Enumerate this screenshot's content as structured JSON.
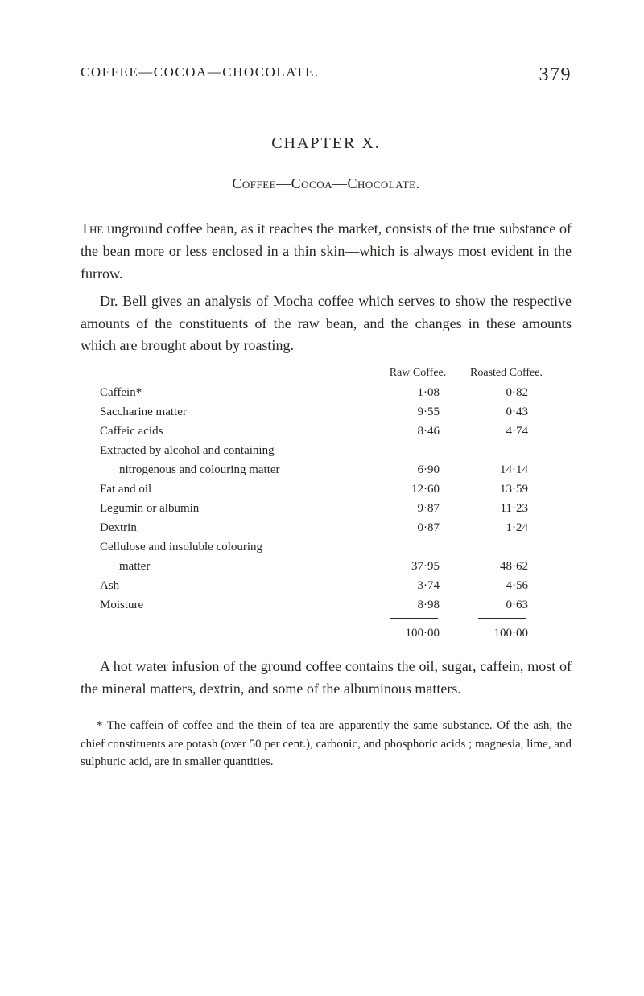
{
  "header": {
    "running_title": "COFFEE—COCOA—CHOCOLATE.",
    "page_number": "379"
  },
  "chapter": {
    "title": "CHAPTER X.",
    "subtitle": "Coffee—Cocoa—Chocolate."
  },
  "paragraphs": {
    "p1": "The unground coffee bean, as it reaches the market, consists of the true substance of the bean more or less enclosed in a thin skin—which is always most evident in the furrow.",
    "p1_lead": "The",
    "p1_rest": " unground coffee bean, as it reaches the market, consists of the true substance of the bean more or less enclosed in a thin skin—which is always most evident in the furrow.",
    "p2": "Dr. Bell gives an analysis of Mocha coffee which serves to show the respective amounts of the constituents of the raw bean, and the changes in these amounts which are brought about by roasting.",
    "p3": "A hot water infusion of the ground coffee contains the oil, sugar, caffein, most of the mineral matters, dextrin, and some of the albuminous matters."
  },
  "table": {
    "col1_header": "Raw Coffee.",
    "col2_header": "Roasted Coffee.",
    "rows": [
      {
        "label": "Caffein*",
        "raw": "1·08",
        "roasted": "0·82"
      },
      {
        "label": "Saccharine matter",
        "raw": "9·55",
        "roasted": "0·43"
      },
      {
        "label": "Caffeic acids",
        "raw": "8·46",
        "roasted": "4·74"
      },
      {
        "label": "Extracted by alcohol and containing",
        "raw": "",
        "roasted": ""
      },
      {
        "label": "nitrogenous and colouring matter",
        "raw": "6·90",
        "roasted": "14·14",
        "sub": true
      },
      {
        "label": "Fat and oil",
        "raw": "12·60",
        "roasted": "13·59"
      },
      {
        "label": "Legumin or albumin",
        "raw": "9·87",
        "roasted": "11·23"
      },
      {
        "label": "Dextrin",
        "raw": "0·87",
        "roasted": "1·24"
      },
      {
        "label": "Cellulose and insoluble colouring",
        "raw": "",
        "roasted": ""
      },
      {
        "label": "matter",
        "raw": "37·95",
        "roasted": "48·62",
        "sub": true
      },
      {
        "label": "Ash",
        "raw": "3·74",
        "roasted": "4·56"
      },
      {
        "label": "Moisture",
        "raw": "8·98",
        "roasted": "0·63"
      }
    ],
    "total": {
      "raw": "100·00",
      "roasted": "100·00"
    }
  },
  "footnote": "* The caffein of coffee and the thein of tea are apparently the same substance. Of the ash, the chief constituents are potash (over 50 per cent.), carbonic, and phosphoric acids ; magnesia, lime, and sulphuric acid, are in smaller quantities."
}
